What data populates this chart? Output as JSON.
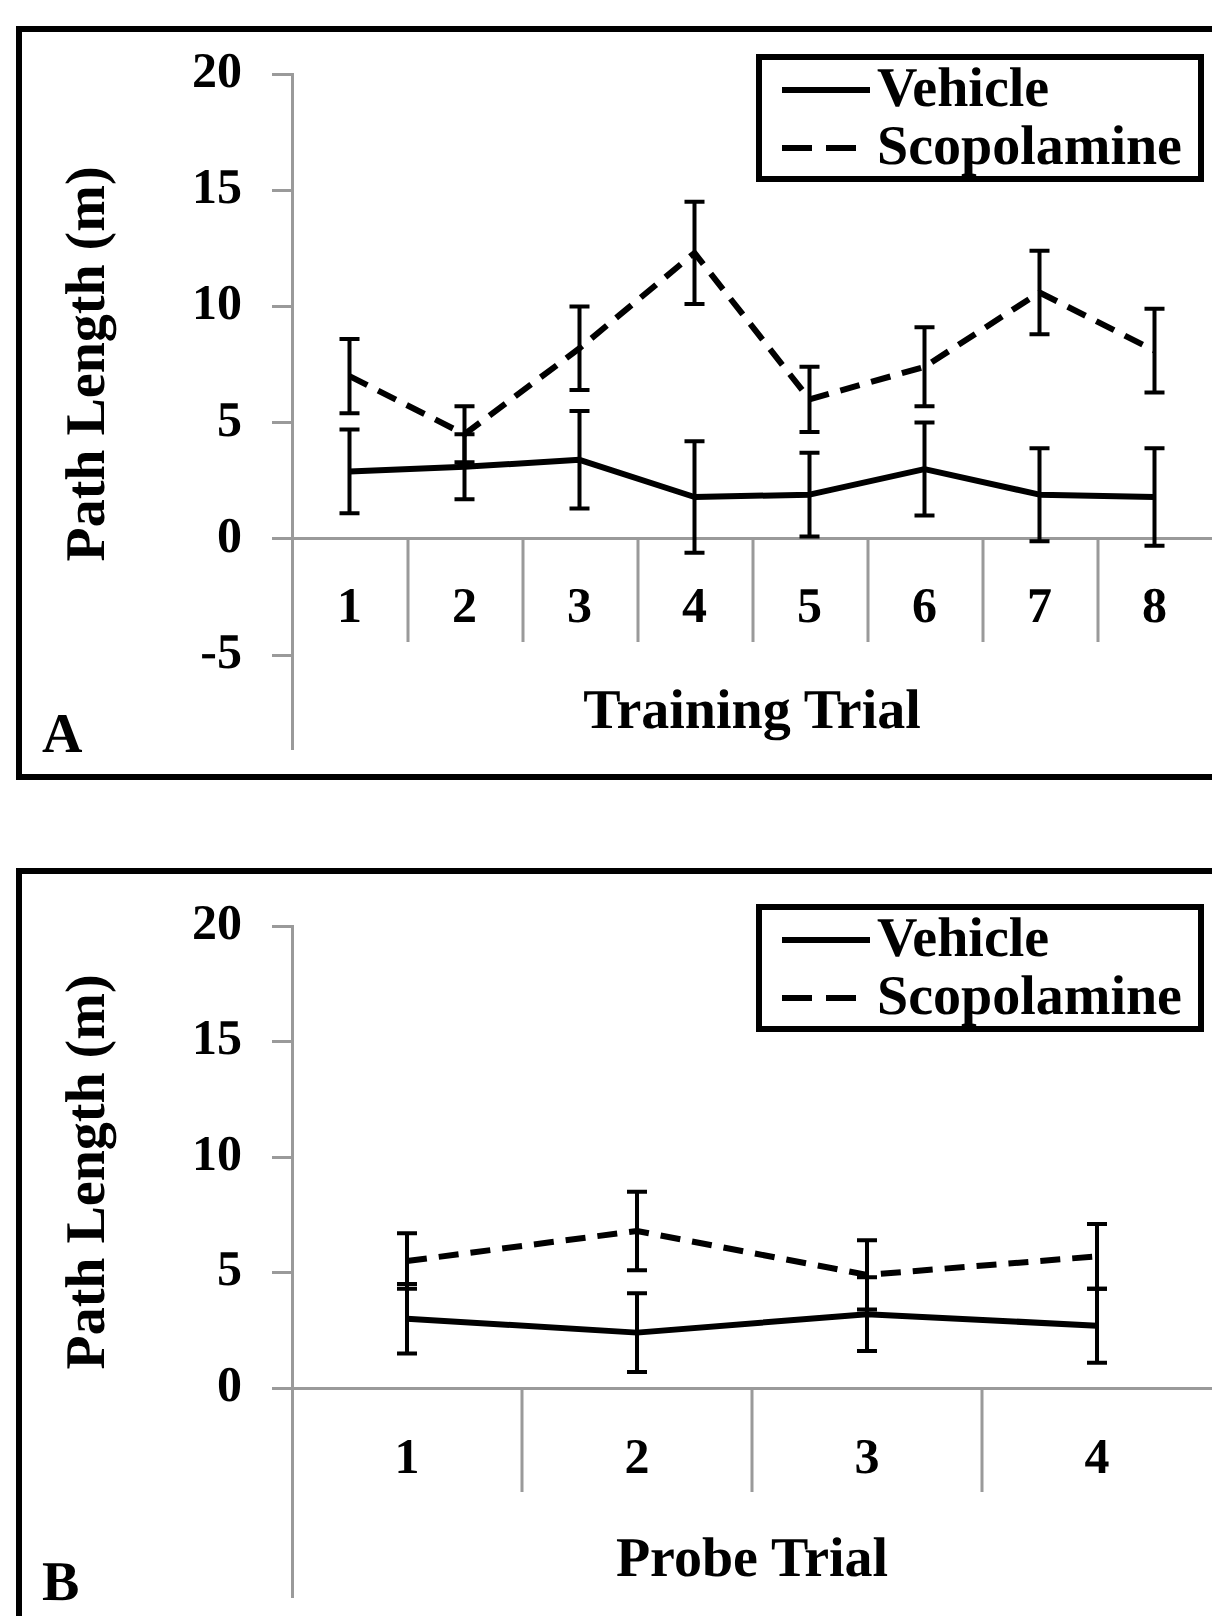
{
  "chart_data": [
    {
      "type": "line",
      "categories": [
        "1",
        "2",
        "3",
        "4",
        "5",
        "6",
        "7",
        "8"
      ],
      "xlabel": "Training Trial",
      "ylabel": "Path Length (m)",
      "ylim": [
        -9,
        20
      ],
      "yticks": [
        -5,
        0,
        5,
        10,
        15,
        20
      ],
      "legend": "top right",
      "annotations": [
        "A"
      ],
      "series": [
        {
          "name": "Vehicle",
          "color": "#000000",
          "line_style": "solid",
          "values": [
            2.9,
            3.1,
            3.4,
            1.8,
            1.9,
            3.0,
            1.9,
            1.8
          ],
          "errors": [
            1.8,
            1.4,
            2.1,
            2.4,
            1.8,
            2.0,
            2.0,
            2.1
          ]
        },
        {
          "name": "Scopolamine",
          "color": "#000000",
          "line_style": "dashed",
          "values": [
            7.0,
            4.5,
            8.2,
            12.3,
            6.0,
            7.4,
            10.6,
            8.1
          ],
          "errors": [
            1.6,
            1.2,
            1.8,
            2.2,
            1.4,
            1.7,
            1.8,
            1.8
          ]
        }
      ]
    },
    {
      "type": "line",
      "categories": [
        "1",
        "2",
        "3",
        "4"
      ],
      "xlabel": "Probe Trial",
      "ylabel": "Path Length (m)",
      "ylim": [
        -9,
        20
      ],
      "yticks": [
        0,
        5,
        10,
        15,
        20
      ],
      "legend": "top right",
      "annotations": [
        "B"
      ],
      "series": [
        {
          "name": "Vehicle",
          "color": "#000000",
          "line_style": "solid",
          "values": [
            3.0,
            2.4,
            3.2,
            2.7
          ],
          "errors": [
            1.5,
            1.7,
            1.6,
            1.6
          ]
        },
        {
          "name": "Scopolamine",
          "color": "#000000",
          "line_style": "dashed",
          "values": [
            5.5,
            6.8,
            4.9,
            5.7
          ],
          "errors": [
            1.2,
            1.7,
            1.5,
            1.4
          ]
        }
      ]
    }
  ]
}
